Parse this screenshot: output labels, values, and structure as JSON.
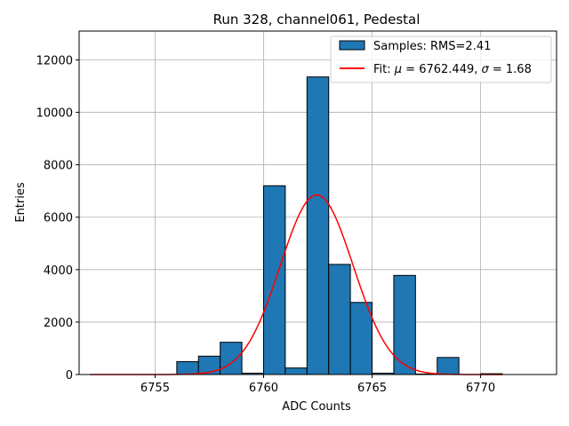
{
  "chart_data": {
    "type": "bar",
    "title": "Run 328, channel061, Pedestal",
    "xlabel": "ADC Counts",
    "ylabel": "Entries",
    "xlim": [
      6751.5,
      6773.5
    ],
    "ylim": [
      0,
      13100
    ],
    "xticks": [
      6755,
      6760,
      6765,
      6770
    ],
    "yticks": [
      0,
      2000,
      4000,
      6000,
      8000,
      10000,
      12000
    ],
    "grid": true,
    "legend_position": "top-right",
    "bar_color": "#1f77b4",
    "fit_color": "#ff0000",
    "histogram": {
      "name": "Samples: RMS=2.41",
      "bin_width": 1,
      "bin_starts": [
        6756,
        6757,
        6758,
        6759,
        6760,
        6761,
        6762,
        6763,
        6764,
        6765,
        6766,
        6767,
        6768,
        6769,
        6770
      ],
      "values": [
        490,
        700,
        1230,
        50,
        7200,
        250,
        11350,
        4200,
        2750,
        50,
        3780,
        20,
        650,
        0,
        30
      ]
    },
    "fit": {
      "name_prefix": "Fit: ",
      "mu_symbol": "μ",
      "mu_text": " = 6762.449, ",
      "sigma_symbol": "σ",
      "sigma_text": " = 1.68",
      "mu": 6762.449,
      "sigma": 1.68,
      "amplitude": 6850,
      "x_range": [
        6752,
        6771
      ]
    }
  }
}
